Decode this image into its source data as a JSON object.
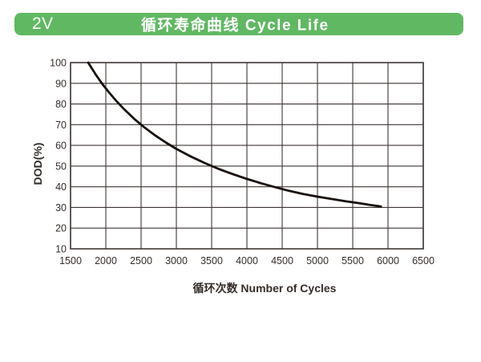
{
  "header": {
    "model_label": "2V",
    "title": "循环寿命曲线 Cycle Life",
    "bar_color": "#61b863",
    "text_color": "#ffffff"
  },
  "chart_data": {
    "type": "line",
    "title": "循环寿命曲线 Cycle Life",
    "xlabel": "循环次数 Number of Cycles",
    "ylabel": "DOD(%)",
    "ylabel_parts": {
      "bold": "DOD",
      "normal": "(%)"
    },
    "xlim": [
      1500,
      6500
    ],
    "ylim": [
      10,
      100
    ],
    "x_ticks": [
      1500,
      2000,
      2500,
      3000,
      3500,
      4000,
      4500,
      5000,
      5500,
      6000,
      6500
    ],
    "y_ticks": [
      100,
      90,
      80,
      70,
      60,
      50,
      40,
      30,
      20,
      10
    ],
    "grid": true,
    "legend": "none",
    "series": [
      {
        "name": "cycle-life-curve",
        "points": [
          [
            1750,
            100
          ],
          [
            1850,
            94.6
          ],
          [
            1950,
            89.7
          ],
          [
            2050,
            85.4
          ],
          [
            2150,
            81.4
          ],
          [
            2250,
            77.8
          ],
          [
            2400,
            72.9
          ],
          [
            2550,
            68.6
          ],
          [
            2700,
            64.8
          ],
          [
            2850,
            61.4
          ],
          [
            3000,
            58.3
          ],
          [
            3200,
            54.7
          ],
          [
            3400,
            51.5
          ],
          [
            3600,
            48.6
          ],
          [
            3800,
            46.1
          ],
          [
            4000,
            43.8
          ],
          [
            4200,
            41.7
          ],
          [
            4400,
            39.8
          ],
          [
            4600,
            38.0
          ],
          [
            4800,
            36.5
          ],
          [
            5000,
            35.2
          ],
          [
            5200,
            34.1
          ],
          [
            5400,
            33.0
          ],
          [
            5600,
            32.0
          ],
          [
            5750,
            31.2
          ],
          [
            5900,
            30.5
          ]
        ]
      }
    ],
    "colors": {
      "grid": "#3e3634",
      "curve": "#18100c",
      "tick_text": "#352d2a"
    }
  }
}
